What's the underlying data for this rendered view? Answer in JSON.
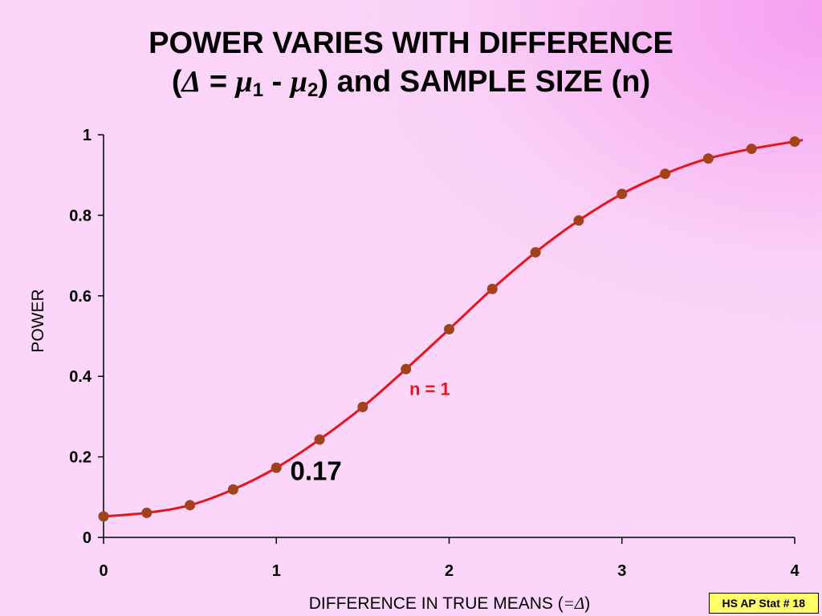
{
  "slide": {
    "title_line1": "POWER VARIES WITH DIFFERENCE",
    "title_open": "(",
    "title_delta": "Δ",
    "title_eq": " = ",
    "title_mu1": "μ",
    "title_sub1": "1",
    "title_minus": " - ",
    "title_mu2": "μ",
    "title_sub2": "2",
    "title_close": ")",
    "title_rest": "  and SAMPLE SIZE (n)",
    "footer_badge": "HS AP Stat # 18"
  },
  "chart_data": {
    "type": "line",
    "x": [
      0,
      0.25,
      0.5,
      0.75,
      1,
      1.25,
      1.5,
      1.75,
      2,
      2.25,
      2.5,
      2.75,
      3,
      3.25,
      3.5,
      3.75,
      4
    ],
    "series": [
      {
        "name": "n = 1",
        "values": [
          0.052,
          0.061,
          0.08,
          0.119,
          0.173,
          0.243,
          0.324,
          0.418,
          0.517,
          0.617,
          0.708,
          0.787,
          0.853,
          0.903,
          0.941,
          0.965,
          0.983
        ]
      }
    ],
    "xlabel_text": "DIFFERENCE IN TRUE MEANS",
    "xlabel_paren_open": "(",
    "xlabel_eq": "=",
    "xlabel_delta": "Δ",
    "xlabel_paren_close": ")",
    "ylabel": "POWER",
    "xlim": [
      0,
      4
    ],
    "ylim": [
      0,
      1
    ],
    "xticks": [
      0,
      1,
      2,
      3,
      4
    ],
    "yticks": [
      0,
      0.2,
      0.4,
      0.6,
      0.8,
      1
    ],
    "xtick_labels": [
      "0",
      "1",
      "2",
      "3",
      "4"
    ],
    "ytick_labels": [
      "0",
      "0.2",
      "0.4",
      "0.6",
      "0.8",
      "1"
    ],
    "grid": false,
    "legend": "none",
    "annotations": [
      {
        "text": "n = 1",
        "x": 1.77,
        "y": 0.37,
        "color": "#e8141c"
      },
      {
        "text": "0.17",
        "x": 1.08,
        "y": 0.17,
        "color": "#000000"
      }
    ],
    "colors": {
      "line": "#e8141c",
      "marker": "#a0421a",
      "axis": "#000000"
    }
  }
}
